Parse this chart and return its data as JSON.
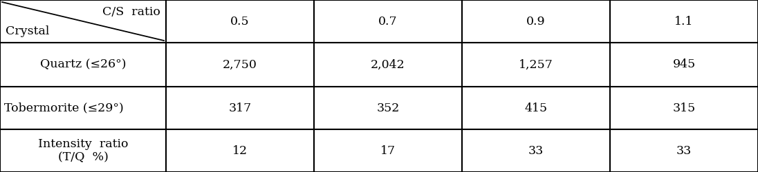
{
  "col_labels": [
    "0.5",
    "0.7",
    "0.9",
    "1.1"
  ],
  "header_top": "C/S  ratio",
  "header_bottom": "Crystal",
  "row_label_1": "Quartz (≤26°)",
  "row_label_2": "Tobermorite (≤29°)",
  "row_label_3": "Intensity  ratio\n(T/Q  %)",
  "values": [
    [
      "2,750",
      "2,042",
      "1,257",
      "945"
    ],
    [
      "317",
      "352",
      "415",
      "315"
    ],
    [
      "12",
      "17",
      "33",
      "33"
    ]
  ],
  "background": "#ffffff",
  "border_color": "#000000",
  "text_color": "#000000",
  "fontsize": 12.5,
  "header_fontsize": 12.5
}
